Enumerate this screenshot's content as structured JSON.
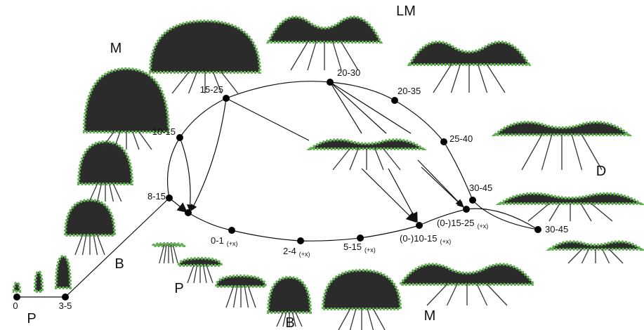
{
  "stages": [
    "P",
    "B",
    "M",
    "LM",
    "D",
    "P",
    "B",
    "M"
  ],
  "nodes": [
    {
      "label": "0"
    },
    {
      "label": "3-5"
    },
    {
      "label": "8-15"
    },
    {
      "label": "10-15"
    },
    {
      "label": "15-25"
    },
    {
      "label": "20-30"
    },
    {
      "label": "20-35"
    },
    {
      "label": "25-40"
    },
    {
      "label": "30-45"
    },
    {
      "label": "30-45"
    },
    {
      "label": "0-1",
      "suffix": "(+x)"
    },
    {
      "label": "2-4",
      "suffix": "(+x)"
    },
    {
      "label": "5-15",
      "suffix": "(+x)"
    },
    {
      "label": "(0-)10-15",
      "suffix": "(+x)"
    },
    {
      "label": "(0-)15-25",
      "suffix": "(+x)"
    }
  ]
}
